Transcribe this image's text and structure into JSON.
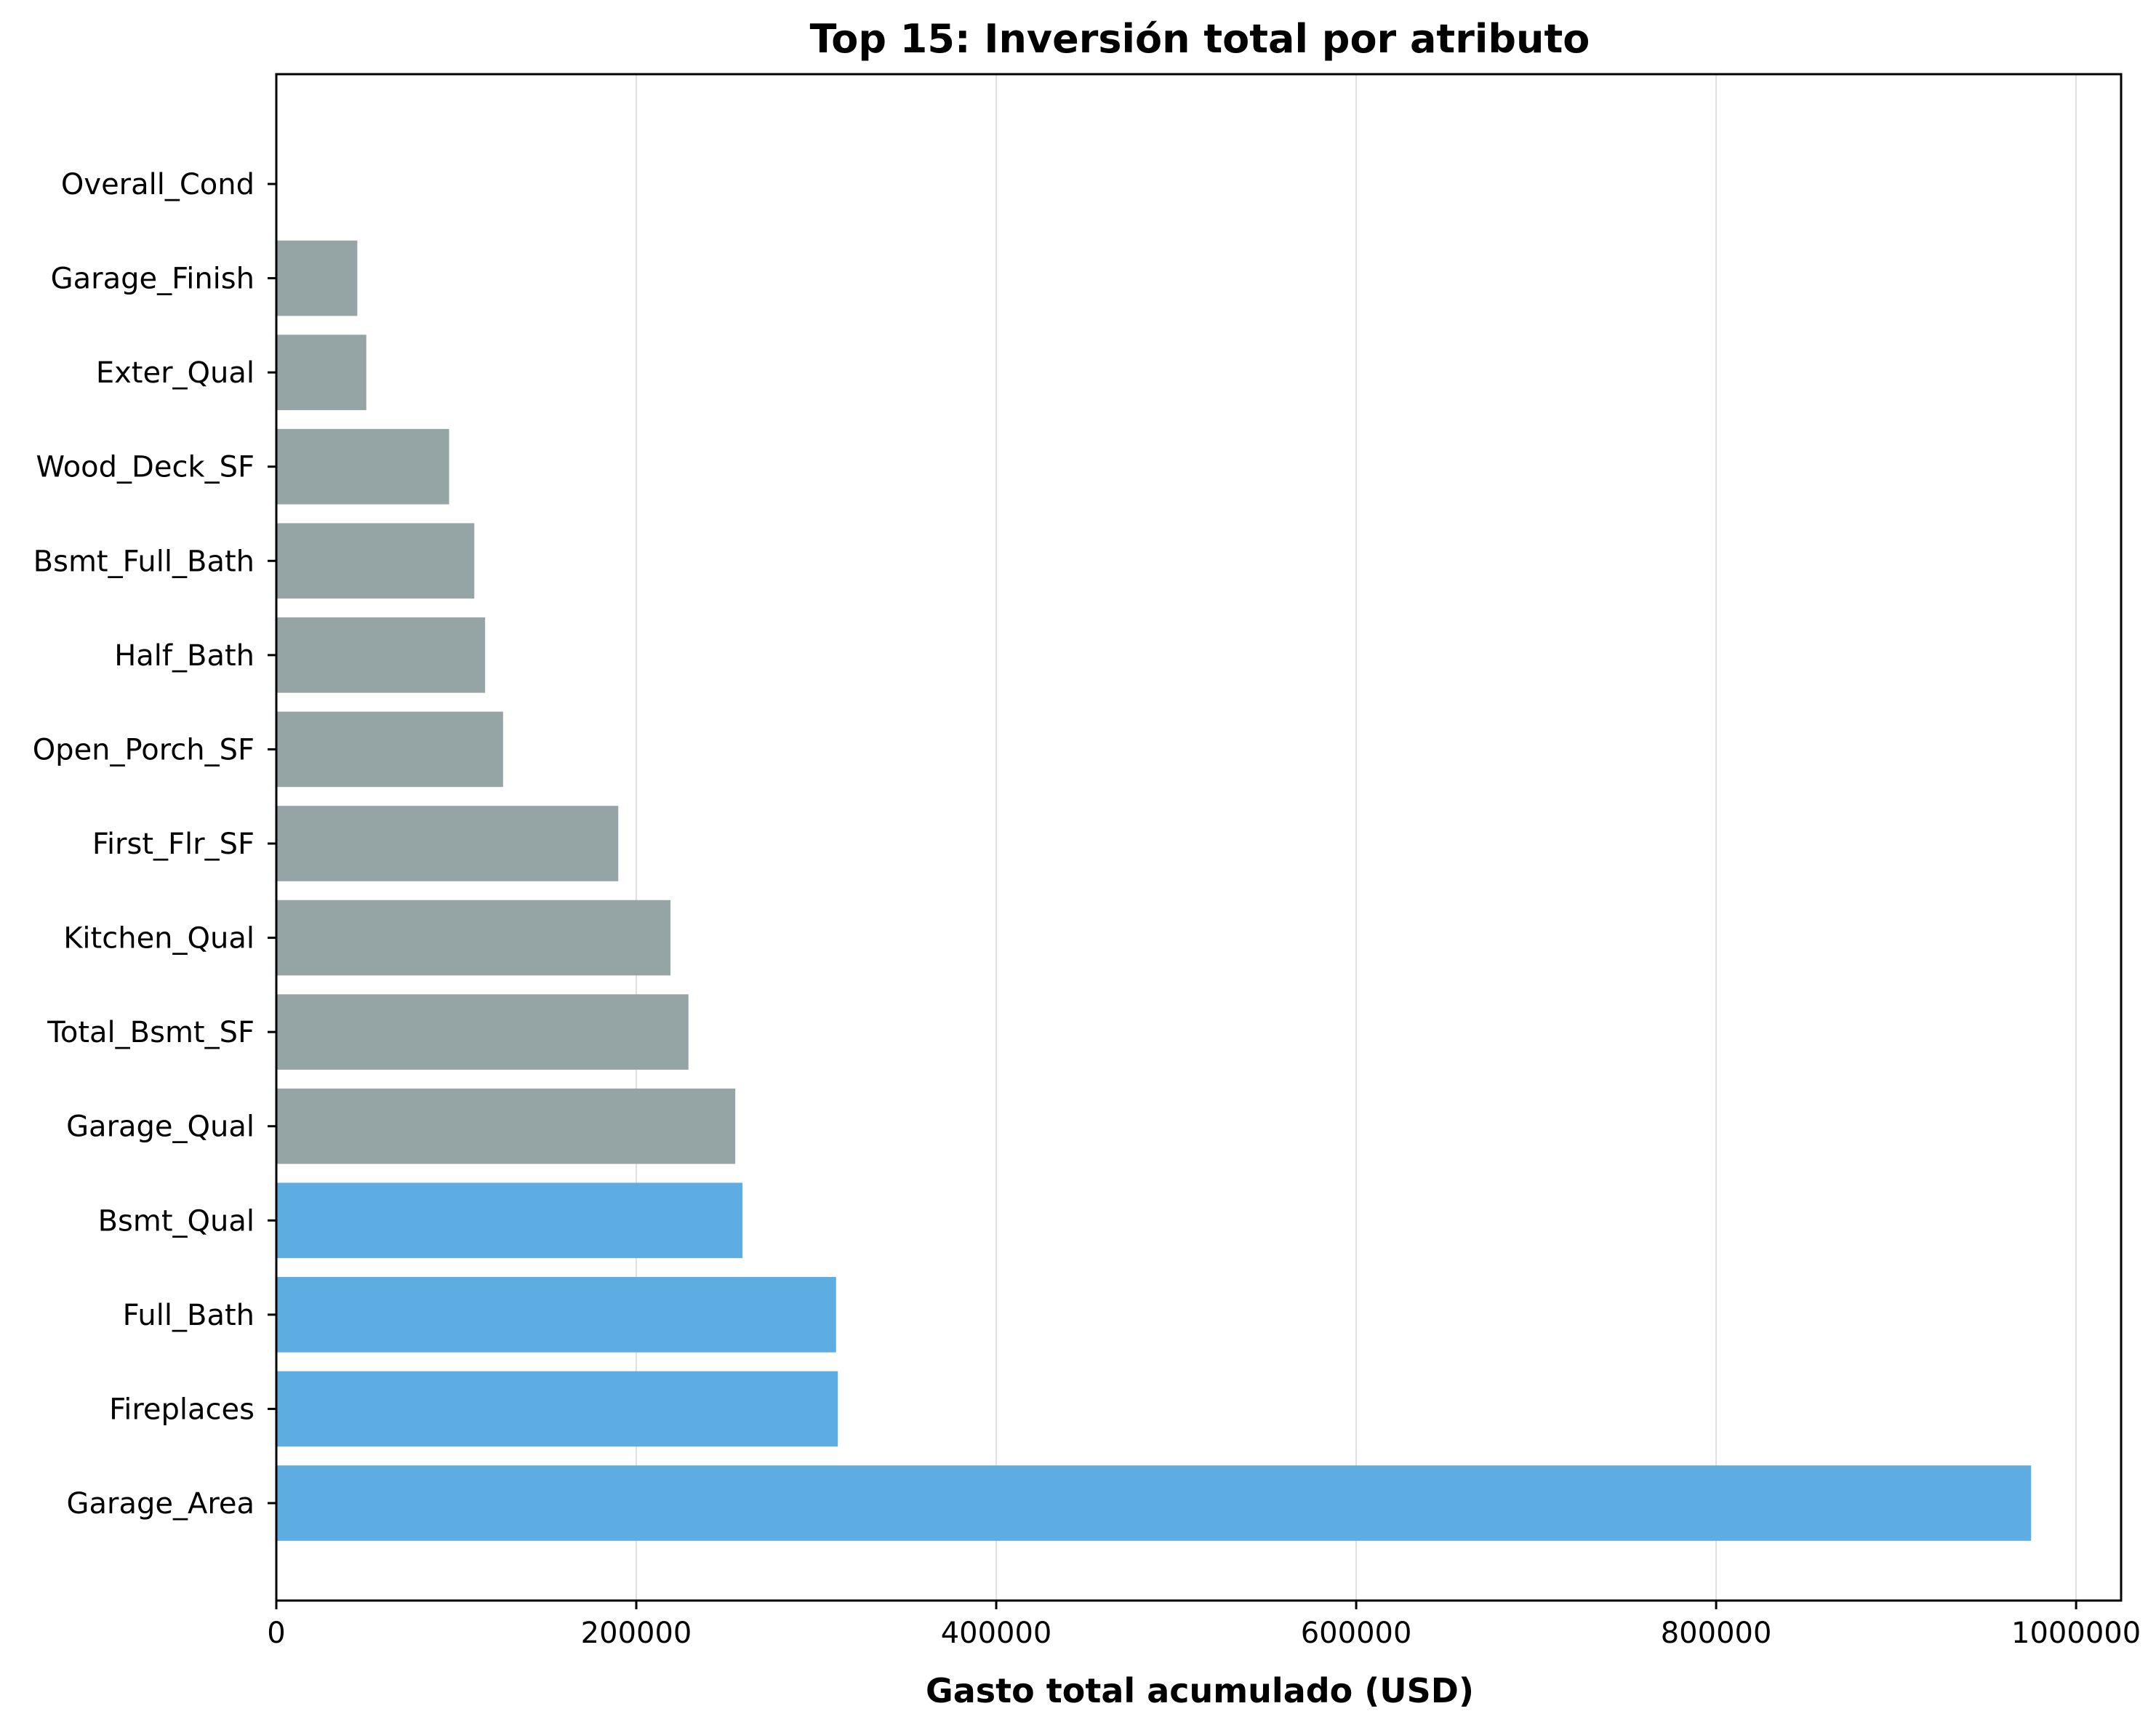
{
  "chart_data": {
    "type": "bar",
    "orientation": "horizontal",
    "title": "Top 15: Inversión total por atributo",
    "xlabel": "Gasto total acumulado (USD)",
    "ylabel": "",
    "xlim": [
      0,
      1025000
    ],
    "xticks": [
      0,
      200000,
      400000,
      600000,
      800000,
      1000000
    ],
    "xtick_labels": [
      "0",
      "200000",
      "400000",
      "600000",
      "800000",
      "1000000"
    ],
    "grid": "vertical",
    "legend": "none",
    "categories": [
      "Garage_Area",
      "Fireplaces",
      "Full_Bath",
      "Bsmt_Qual",
      "Garage_Qual",
      "Total_Bsmt_SF",
      "Kitchen_Qual",
      "First_Flr_SF",
      "Open_Porch_SF",
      "Half_Bath",
      "Bsmt_Full_Bath",
      "Wood_Deck_SF",
      "Exter_Qual",
      "Garage_Finish",
      "Overall_Cond"
    ],
    "values": [
      975000,
      312000,
      311000,
      259000,
      255000,
      229000,
      219000,
      190000,
      126000,
      116000,
      110000,
      96000,
      50000,
      45000,
      0
    ],
    "highlight": [
      true,
      true,
      true,
      true,
      false,
      false,
      false,
      false,
      false,
      false,
      false,
      false,
      false,
      false,
      false
    ],
    "colors": {
      "highlight": "#5dade2",
      "other": "#95a5a6",
      "grid": "#e0e0e0",
      "axis": "#000000"
    }
  }
}
